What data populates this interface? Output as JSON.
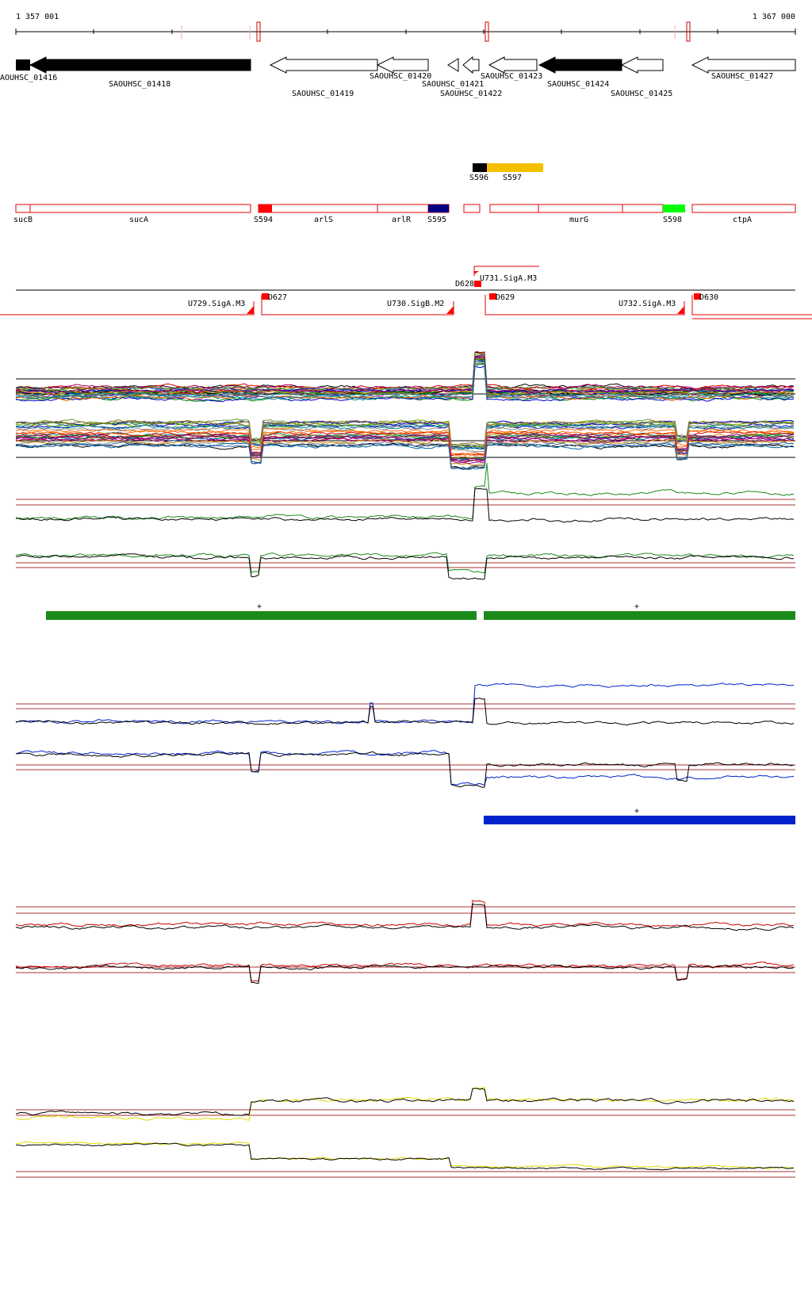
{
  "coords": {
    "start": "1 357 001",
    "end": "1 367 000"
  },
  "genes": [
    {
      "id": "SAOUHSC_01416",
      "label": "AOUHSC_01416",
      "filled": true
    },
    {
      "id": "SAOUHSC_01418",
      "label": "SAOUHSC_01418",
      "filled": true
    },
    {
      "id": "SAOUHSC_01419",
      "label": "SAOUHSC_01419",
      "filled": false
    },
    {
      "id": "SAOUHSC_01420",
      "label": "SAOUHSC_01420",
      "filled": false
    },
    {
      "id": "SAOUHSC_01421",
      "label": "SAOUHSC_01421",
      "filled": false
    },
    {
      "id": "SAOUHSC_01422",
      "label": "SAOUHSC_01422",
      "filled": false
    },
    {
      "id": "SAOUHSC_01423",
      "label": "SAOUHSC_01423",
      "filled": false
    },
    {
      "id": "SAOUHSC_01424",
      "label": "SAOUHSC_01424",
      "filled": true
    },
    {
      "id": "SAOUHSC_01425",
      "label": "SAOUHSC_01425",
      "filled": false
    },
    {
      "id": "SAOUHSC_01427",
      "label": "SAOUHSC_01427",
      "filled": false
    }
  ],
  "small_rnas": [
    {
      "label": "S596",
      "color": "#000000"
    },
    {
      "label": "S597",
      "color": "#f5c000"
    }
  ],
  "segments": [
    {
      "label": "sucB"
    },
    {
      "label": "sucA"
    },
    {
      "label": "S594",
      "color": "#ff0000"
    },
    {
      "label": "arlS"
    },
    {
      "label": "arlR"
    },
    {
      "label": "S595",
      "color": "#000080"
    },
    {
      "label": "murG"
    },
    {
      "label": "S598",
      "color": "#00ff00"
    },
    {
      "label": "ctpA"
    }
  ],
  "promoters": [
    {
      "label": "U729.SigA.M3"
    },
    {
      "label": "D627"
    },
    {
      "label": "U730.SigB.M2"
    },
    {
      "label": "D628"
    },
    {
      "label": "U731.SigA.M3"
    },
    {
      "label": "D629"
    },
    {
      "label": "U732.SigA.M3"
    },
    {
      "label": "D630"
    }
  ],
  "condition_colors": {
    "green": "#1a8a1a",
    "blue": "#0022cc",
    "red": "#cc0000",
    "yellow": "#dddd00",
    "threshold": "#aa3333"
  },
  "plus_marks": [
    "+",
    "+",
    "+"
  ]
}
